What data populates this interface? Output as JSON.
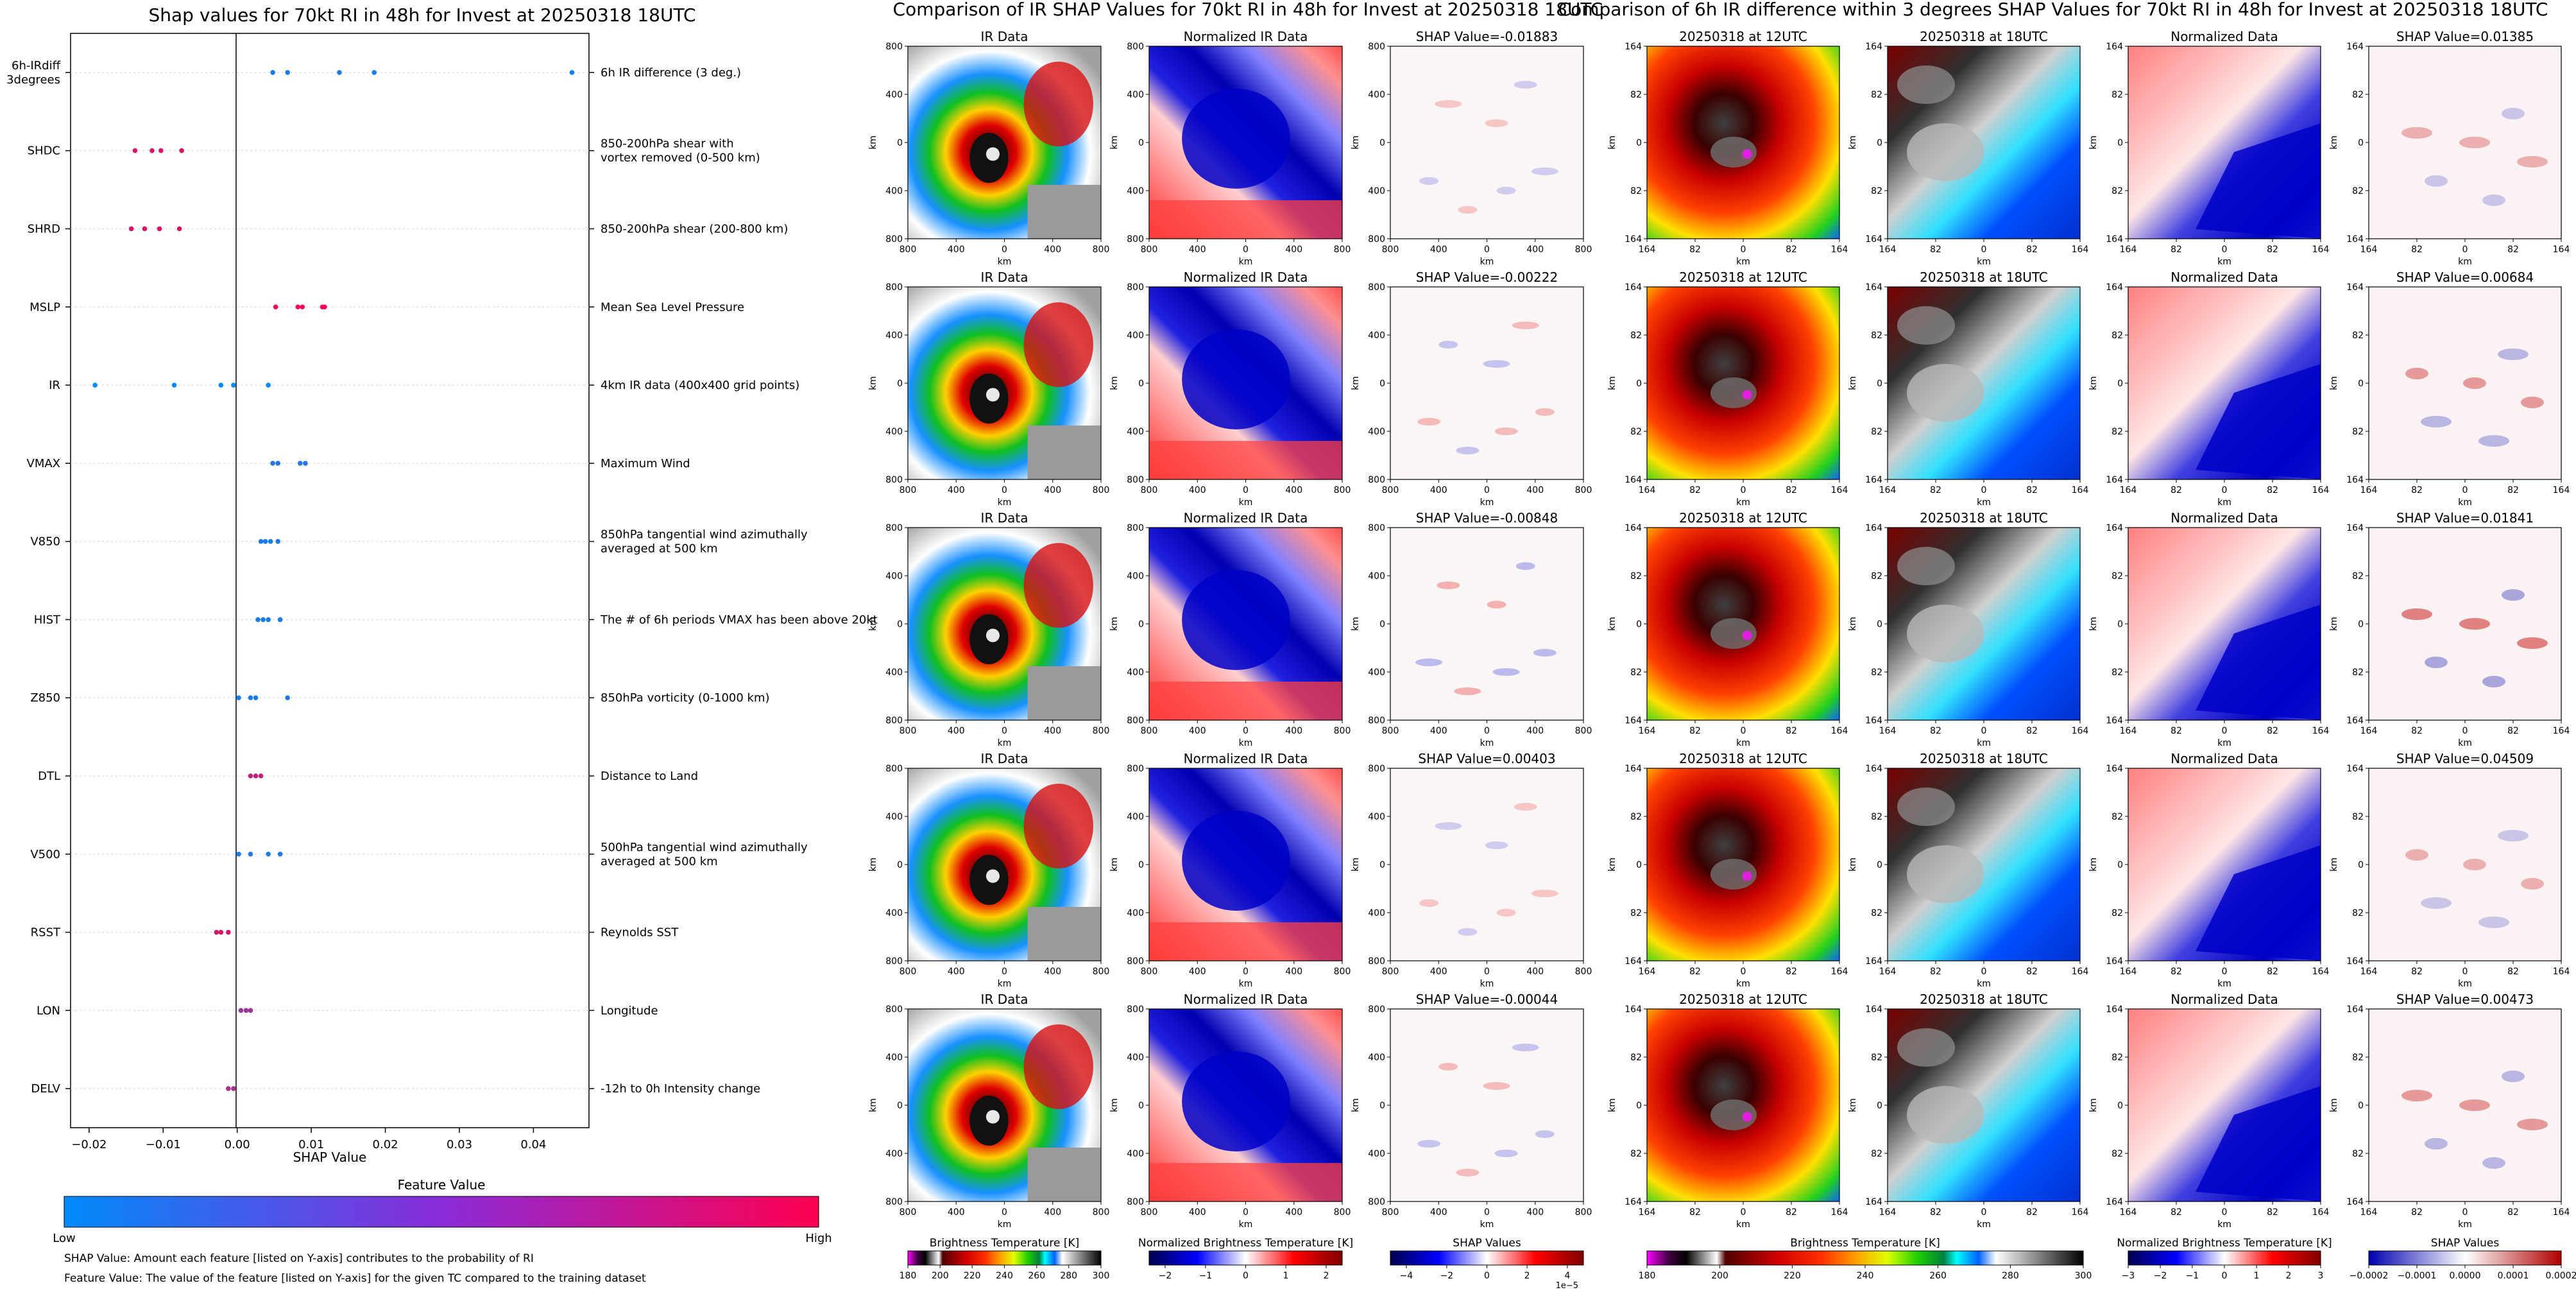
{
  "colors": {
    "low": "#008afb",
    "high": "#ff0050"
  },
  "shap_summary": {
    "title": "Shap values for 70kt RI in 48h for Invest at 20250318 18UTC",
    "xlabel": "SHAP Value",
    "colorbar_title": "Feature Value",
    "colorbar_low": "Low",
    "colorbar_high": "High",
    "note1": "SHAP Value: Amount each feature [listed on Y-axis] contributes to the probability of RI",
    "note2": "Feature Value: The value of the feature [listed on Y-axis] for the given TC compared to the training dataset"
  },
  "chart_data": [
    {
      "type": "scatter",
      "title": "Shap values for 70kt RI in 48h for Invest at 20250318 18UTC",
      "xlabel": "SHAP Value",
      "xlim": [
        -0.0225,
        0.0475
      ],
      "xticks": [
        -0.02,
        -0.01,
        0.0,
        0.01,
        0.02,
        0.03,
        0.04
      ],
      "xtick_labels": [
        "−0.02",
        "−0.01",
        "0.00",
        "0.01",
        "0.02",
        "0.03",
        "0.04"
      ],
      "legend": "none",
      "grid": "horizontal dotted",
      "features": [
        {
          "code": [
            "6h-IRdiff",
            "3degrees"
          ],
          "desc": [
            "6h IR difference (3 deg.)"
          ],
          "level": 0.1,
          "values": [
            0.0048,
            0.0068,
            0.0138,
            0.0185,
            0.0452
          ]
        },
        {
          "code": [
            "SHDC"
          ],
          "desc": [
            "850-200hPa shear with",
            "vortex removed (0-500 km)"
          ],
          "level": 0.85,
          "values": [
            -0.0138,
            -0.0115,
            -0.0103,
            -0.0075
          ]
        },
        {
          "code": [
            "SHRD"
          ],
          "desc": [
            "850-200hPa shear (200-800 km)"
          ],
          "level": 0.85,
          "values": [
            -0.0143,
            -0.0125,
            -0.0105,
            -0.0078
          ]
        },
        {
          "code": [
            "MSLP"
          ],
          "desc": [
            "Mean Sea Level Pressure"
          ],
          "level": 0.95,
          "values": [
            0.0052,
            0.0082,
            0.0088,
            0.0115,
            0.0118
          ]
        },
        {
          "code": [
            "IR"
          ],
          "desc": [
            "4km IR data (400x400 grid points)"
          ],
          "level": 0.0,
          "values": [
            -0.0192,
            -0.0085,
            -0.0022,
            -0.0005,
            0.0042
          ]
        },
        {
          "code": [
            "VMAX"
          ],
          "desc": [
            "Maximum Wind"
          ],
          "level": 0.15,
          "values": [
            0.0048,
            0.0055,
            0.0085,
            0.0092
          ]
        },
        {
          "code": [
            "V850"
          ],
          "desc": [
            "850hPa tangential wind azimuthally",
            "averaged at 500 km"
          ],
          "level": 0.1,
          "values": [
            0.0032,
            0.0038,
            0.0045,
            0.0055
          ]
        },
        {
          "code": [
            "HIST"
          ],
          "desc": [
            "The # of 6h periods VMAX has been above 20kt"
          ],
          "level": 0.1,
          "values": [
            0.0028,
            0.0035,
            0.0042,
            0.0058
          ]
        },
        {
          "code": [
            "Z850"
          ],
          "desc": [
            "850hPa vorticity (0-1000 km)"
          ],
          "level": 0.1,
          "values": [
            0.0002,
            0.0018,
            0.0025,
            0.0068
          ]
        },
        {
          "code": [
            "DTL"
          ],
          "desc": [
            "Distance to Land"
          ],
          "level": 0.75,
          "values": [
            0.0018,
            0.0025,
            0.0032
          ]
        },
        {
          "code": [
            "V500"
          ],
          "desc": [
            "500hPa tangential wind azimuthally",
            "averaged at 500 km"
          ],
          "level": 0.1,
          "values": [
            0.0002,
            0.0018,
            0.0042,
            0.0058
          ]
        },
        {
          "code": [
            "RSST"
          ],
          "desc": [
            "Reynolds SST"
          ],
          "level": 0.85,
          "values": [
            -0.0028,
            -0.0022,
            -0.0012
          ]
        },
        {
          "code": [
            "LON"
          ],
          "desc": [
            "Longitude"
          ],
          "level": 0.6,
          "values": [
            0.0005,
            0.0012,
            0.0018
          ]
        },
        {
          "code": [
            "DELV"
          ],
          "desc": [
            "-12h to 0h Intensity change"
          ],
          "level": 0.65,
          "values": [
            -0.0012,
            -0.0005
          ]
        }
      ]
    },
    {
      "type": "heatmap",
      "title": "Comparison of IR SHAP Values for 70kt RI in 48h for Invest at 20250318 18UTC",
      "column_titles": [
        "IR Data",
        "Normalized IR Data"
      ],
      "shap_titles": [
        "SHAP Value=-0.01883",
        "SHAP Value=-0.00222",
        "SHAP Value=-0.00848",
        "SHAP Value=0.00403",
        "SHAP Value=-0.00044"
      ],
      "axis_label": "km",
      "ticks": [
        "800",
        "400",
        "0",
        "400",
        "800"
      ],
      "colorbars": [
        {
          "label": "Brightness Temperature [K]",
          "ticks": [
            "180",
            "200",
            "220",
            "240",
            "260",
            "280",
            "300"
          ]
        },
        {
          "label": "Normalized Brightness Temperature [K]",
          "ticks": [
            "−2",
            "−1",
            "0",
            "1",
            "2"
          ]
        },
        {
          "label": "SHAP Values",
          "ticks": [
            "−4",
            "−2",
            "0",
            "2",
            "4"
          ],
          "offset": "1e−5"
        }
      ]
    },
    {
      "type": "heatmap",
      "title": "Comparison of 6h IR difference within 3 degrees SHAP Values for 70kt RI in 48h for Invest at 20250318 18UTC",
      "column_titles": [
        "20250318 at 12UTC",
        "20250318 at 18UTC",
        "Normalized Data"
      ],
      "shap_titles": [
        "SHAP Value=0.01385",
        "SHAP Value=0.00684",
        "SHAP Value=0.01841",
        "SHAP Value=0.04509",
        "SHAP Value=0.00473"
      ],
      "axis_label": "km",
      "ticks": [
        "164",
        "82",
        "0",
        "82",
        "164"
      ],
      "colorbars": [
        {
          "label": "Brightness Temperature [K]",
          "ticks": [
            "180",
            "200",
            "220",
            "240",
            "260",
            "280",
            "300"
          ]
        },
        {
          "label": "Normalized Brightness Temperature [K]",
          "ticks": [
            "−3",
            "−2",
            "−1",
            "0",
            "1",
            "2",
            "3"
          ]
        },
        {
          "label": "SHAP Values",
          "ticks": [
            "−0.0002",
            "−0.0001",
            "0.0000",
            "0.0001",
            "0.0002"
          ]
        }
      ]
    }
  ]
}
